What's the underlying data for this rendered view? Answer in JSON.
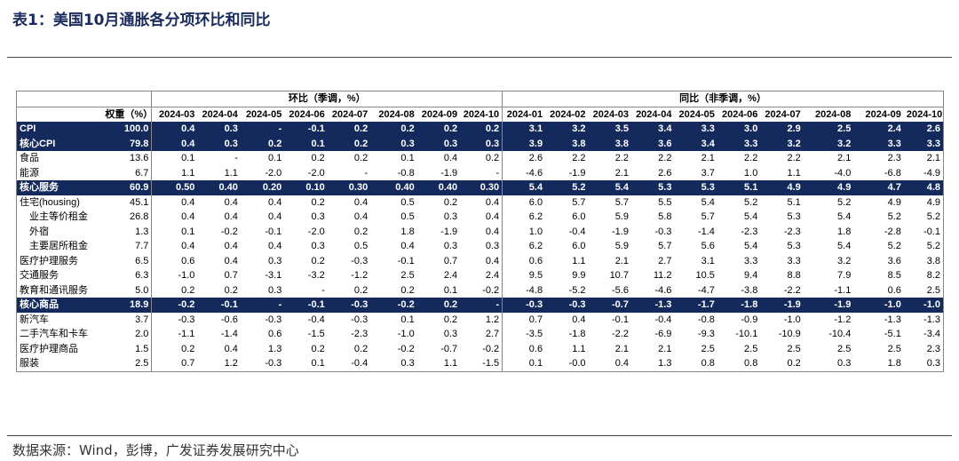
{
  "title": "表1：美国10月通胀各分项环比和同比",
  "source": "数据来源：Wind，彭博，广发证券发展研究中心",
  "header": {
    "group_mom": "环比（季调，%）",
    "group_yoy": "同比（非季调，%）",
    "weight_label": "权重（%）",
    "mom_months": [
      "2024-03",
      "2024-04",
      "2024-05",
      "2024-06",
      "2024-07",
      "2024-08",
      "2024-09",
      "2024-10"
    ],
    "yoy_months": [
      "2024-01",
      "2024-02",
      "2024-03",
      "2024-04",
      "2024-05",
      "2024-06",
      "2024-07",
      "2024-08",
      "2024-09",
      "2024-10"
    ]
  },
  "rows": [
    {
      "label": "CPI",
      "weight": "100.0",
      "hl": true,
      "mom": [
        "0.4",
        "0.3",
        "-",
        "-0.1",
        "0.2",
        "0.2",
        "0.2",
        "0.2"
      ],
      "yoy": [
        "3.1",
        "3.2",
        "3.5",
        "3.4",
        "3.3",
        "3.0",
        "2.9",
        "2.5",
        "2.4",
        "2.6"
      ]
    },
    {
      "label": "核心CPI",
      "weight": "79.8",
      "hl": true,
      "mom": [
        "0.4",
        "0.3",
        "0.2",
        "0.1",
        "0.2",
        "0.3",
        "0.3",
        "0.3"
      ],
      "yoy": [
        "3.9",
        "3.8",
        "3.8",
        "3.6",
        "3.4",
        "3.3",
        "3.2",
        "3.2",
        "3.3",
        "3.3"
      ]
    },
    {
      "label": "食品",
      "weight": "13.6",
      "mom": [
        "0.1",
        "-",
        "0.1",
        "0.2",
        "0.2",
        "0.1",
        "0.4",
        "0.2"
      ],
      "yoy": [
        "2.6",
        "2.2",
        "2.2",
        "2.2",
        "2.1",
        "2.2",
        "2.2",
        "2.1",
        "2.3",
        "2.1"
      ]
    },
    {
      "label": "能源",
      "weight": "6.7",
      "mom": [
        "1.1",
        "1.1",
        "-2.0",
        "-2.0",
        "-",
        "-0.8",
        "-1.9",
        "-"
      ],
      "yoy": [
        "-4.6",
        "-1.9",
        "2.1",
        "2.6",
        "3.7",
        "1.0",
        "1.1",
        "-4.0",
        "-6.8",
        "-4.9"
      ]
    },
    {
      "label": "核心服务",
      "weight": "60.9",
      "hl": true,
      "mom": [
        "0.50",
        "0.40",
        "0.20",
        "0.10",
        "0.30",
        "0.40",
        "0.40",
        "0.30"
      ],
      "yoy": [
        "5.4",
        "5.2",
        "5.4",
        "5.3",
        "5.3",
        "5.1",
        "4.9",
        "4.9",
        "4.7",
        "4.8"
      ]
    },
    {
      "label": "住宅(housing)",
      "weight": "45.1",
      "mom": [
        "0.4",
        "0.4",
        "0.4",
        "0.2",
        "0.4",
        "0.5",
        "0.2",
        "0.4"
      ],
      "yoy": [
        "6.0",
        "5.7",
        "5.7",
        "5.5",
        "5.4",
        "5.2",
        "5.1",
        "5.2",
        "4.9",
        "4.9"
      ]
    },
    {
      "label": "业主等价租金",
      "weight": "26.8",
      "indent": true,
      "mom": [
        "0.4",
        "0.4",
        "0.4",
        "0.3",
        "0.4",
        "0.5",
        "0.3",
        "0.4"
      ],
      "yoy": [
        "6.2",
        "6.0",
        "5.9",
        "5.8",
        "5.7",
        "5.4",
        "5.3",
        "5.4",
        "5.2",
        "5.2"
      ]
    },
    {
      "label": "外宿",
      "weight": "1.3",
      "indent": true,
      "mom": [
        "0.1",
        "-0.2",
        "-0.1",
        "-2.0",
        "0.2",
        "1.8",
        "-1.9",
        "0.4"
      ],
      "yoy": [
        "1.0",
        "-0.4",
        "-1.9",
        "-0.3",
        "-1.4",
        "-2.3",
        "-2.3",
        "1.8",
        "-2.8",
        "-0.1"
      ]
    },
    {
      "label": "主要居所租金",
      "weight": "7.7",
      "indent": true,
      "mom": [
        "0.4",
        "0.4",
        "0.4",
        "0.3",
        "0.5",
        "0.4",
        "0.3",
        "0.3"
      ],
      "yoy": [
        "6.2",
        "6.0",
        "5.9",
        "5.7",
        "5.6",
        "5.4",
        "5.3",
        "5.4",
        "5.2",
        "5.2"
      ]
    },
    {
      "label": "医疗护理服务",
      "weight": "6.5",
      "mom": [
        "0.6",
        "0.4",
        "0.3",
        "0.2",
        "-0.3",
        "-0.1",
        "0.7",
        "0.4"
      ],
      "yoy": [
        "0.6",
        "1.1",
        "2.1",
        "2.7",
        "3.1",
        "3.3",
        "3.3",
        "3.2",
        "3.6",
        "3.8"
      ]
    },
    {
      "label": "交通服务",
      "weight": "6.3",
      "mom": [
        "-1.0",
        "0.7",
        "-3.1",
        "-3.2",
        "-1.2",
        "2.5",
        "2.4",
        "2.4"
      ],
      "yoy": [
        "9.5",
        "9.9",
        "10.7",
        "11.2",
        "10.5",
        "9.4",
        "8.8",
        "7.9",
        "8.5",
        "8.2"
      ]
    },
    {
      "label": "教育和通讯服务",
      "weight": "5.0",
      "mom": [
        "0.2",
        "0.2",
        "0.3",
        "-",
        "0.2",
        "0.2",
        "0.1",
        "-0.2"
      ],
      "yoy": [
        "-4.8",
        "-5.2",
        "-5.6",
        "-4.6",
        "-4.7",
        "-3.8",
        "-2.2",
        "-1.1",
        "0.6",
        "2.5"
      ]
    },
    {
      "label": "核心商品",
      "weight": "18.9",
      "hl": true,
      "mom": [
        "-0.2",
        "-0.1",
        "-",
        "-0.1",
        "-0.3",
        "-0.2",
        "0.2",
        "-"
      ],
      "yoy": [
        "-0.3",
        "-0.3",
        "-0.7",
        "-1.3",
        "-1.7",
        "-1.8",
        "-1.9",
        "-1.9",
        "-1.0",
        "-1.0"
      ]
    },
    {
      "label": "新汽车",
      "weight": "3.7",
      "mom": [
        "-0.3",
        "-0.6",
        "-0.3",
        "-0.4",
        "-0.3",
        "0.1",
        "0.2",
        "1.2"
      ],
      "yoy": [
        "0.7",
        "0.4",
        "-0.1",
        "-0.4",
        "-0.8",
        "-0.9",
        "-1.0",
        "-1.2",
        "-1.3",
        "-1.3"
      ]
    },
    {
      "label": "二手汽车和卡车",
      "weight": "2.0",
      "mom": [
        "-1.1",
        "-1.4",
        "0.6",
        "-1.5",
        "-2.3",
        "-1.0",
        "0.3",
        "2.7"
      ],
      "yoy": [
        "-3.5",
        "-1.8",
        "-2.2",
        "-6.9",
        "-9.3",
        "-10.1",
        "-10.9",
        "-10.4",
        "-5.1",
        "-3.4"
      ]
    },
    {
      "label": "医疗护理商品",
      "weight": "1.5",
      "mom": [
        "0.2",
        "0.4",
        "1.3",
        "0.2",
        "0.2",
        "-0.2",
        "-0.7",
        "-0.2"
      ],
      "yoy": [
        "0.6",
        "1.1",
        "2.1",
        "2.1",
        "2.5",
        "2.5",
        "2.5",
        "2.5",
        "2.5",
        "2.3"
      ]
    },
    {
      "label": "服装",
      "weight": "2.5",
      "mom": [
        "0.7",
        "1.2",
        "-0.3",
        "0.1",
        "-0.4",
        "0.3",
        "1.1",
        "-1.5"
      ],
      "yoy": [
        "0.1",
        "-0.0",
        "0.4",
        "1.3",
        "0.8",
        "0.8",
        "0.2",
        "0.3",
        "1.8",
        "0.3"
      ]
    }
  ]
}
